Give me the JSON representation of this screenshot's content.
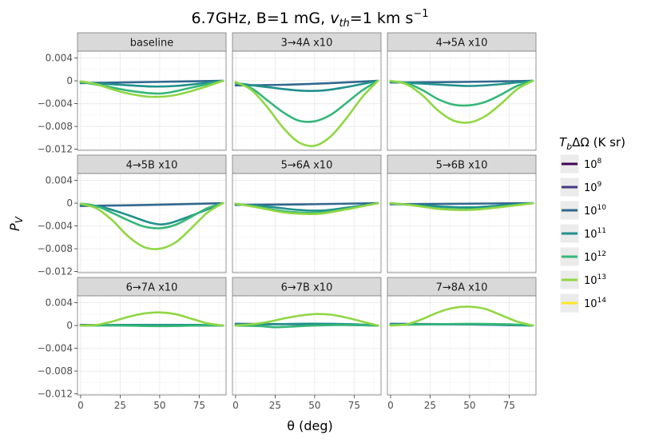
{
  "chart_data": {
    "type": "line",
    "facet": true,
    "title": "6.7GHz, B=1 mG, v_th=1 km s^-1",
    "title_parts": {
      "prefix": "6.7GHz, B=1 mG, ",
      "v": "v",
      "v_sub": "th",
      "mid": "=1 km s",
      "sup": "−1"
    },
    "xlabel": "θ (deg)",
    "ylabel": "P_V",
    "ylabel_parts": {
      "main": "P",
      "sub": "V"
    },
    "xlim": [
      -2,
      92
    ],
    "ylim": [
      -0.0122,
      0.0052
    ],
    "x_ticks": [
      0,
      25,
      50,
      75
    ],
    "x_tick_labels": [
      "0",
      "25",
      "50",
      "75"
    ],
    "y_ticks": [
      0.004,
      0,
      -0.004,
      -0.008,
      -0.012
    ],
    "y_tick_labels": [
      "0.004",
      "0",
      "−0.004",
      "−0.008",
      "−0.012"
    ],
    "legend": {
      "title": "T_bΔΩ (K sr)",
      "title_parts": {
        "main": "T",
        "sub": "b",
        "rest": "ΔΩ (K sr)"
      },
      "position": "right",
      "entries": [
        {
          "name": "10^8",
          "base": "10",
          "exp": "8",
          "color": "#440154"
        },
        {
          "name": "10^9",
          "base": "10",
          "exp": "9",
          "color": "#443983"
        },
        {
          "name": "10^10",
          "base": "10",
          "exp": "10",
          "color": "#31688e"
        },
        {
          "name": "10^11",
          "base": "10",
          "exp": "11",
          "color": "#21918c"
        },
        {
          "name": "10^12",
          "base": "10",
          "exp": "12",
          "color": "#35b779"
        },
        {
          "name": "10^13",
          "base": "10",
          "exp": "13",
          "color": "#90d743"
        },
        {
          "name": "10^14",
          "base": "10",
          "exp": "14",
          "color": "#fde725"
        }
      ]
    },
    "panels": [
      {
        "label": "baseline",
        "series": [
          {
            "name": "10^10",
            "color": "#31688e",
            "x": [
              0,
              45,
              90
            ],
            "y": [
              -0.0004,
              -0.0002,
              0
            ]
          },
          {
            "name": "10^11",
            "color": "#21918c",
            "x": [
              0,
              25,
              45,
              60,
              75,
              90
            ],
            "y": [
              -0.0003,
              -0.0007,
              -0.001,
              -0.0009,
              -0.0005,
              0
            ]
          },
          {
            "name": "10^12",
            "color": "#35b779",
            "x": [
              0,
              15,
              30,
              45,
              55,
              70,
              90
            ],
            "y": [
              -0.0002,
              -0.0009,
              -0.0017,
              -0.0022,
              -0.0021,
              -0.0012,
              0
            ]
          },
          {
            "name": "10^13",
            "color": "#90d743",
            "x": [
              0,
              10,
              25,
              40,
              50,
              60,
              75,
              90
            ],
            "y": [
              -0.0001,
              -0.0006,
              -0.0019,
              -0.0027,
              -0.0028,
              -0.0025,
              -0.0014,
              0
            ]
          }
        ]
      },
      {
        "label": "3→4A x10",
        "series": [
          {
            "name": "10^10",
            "color": "#31688e",
            "x": [
              0,
              30,
              60,
              90
            ],
            "y": [
              -0.0008,
              -0.0007,
              -0.0004,
              0
            ]
          },
          {
            "name": "10^11",
            "color": "#21918c",
            "x": [
              0,
              20,
              40,
              55,
              70,
              90
            ],
            "y": [
              -0.0004,
              -0.0011,
              -0.0017,
              -0.0017,
              -0.0011,
              0
            ]
          },
          {
            "name": "10^12",
            "color": "#35b779",
            "x": [
              0,
              10,
              20,
              30,
              40,
              50,
              60,
              70,
              80,
              90
            ],
            "y": [
              -0.0004,
              -0.0013,
              -0.0034,
              -0.0055,
              -0.007,
              -0.0071,
              -0.006,
              -0.0039,
              -0.0017,
              0
            ]
          },
          {
            "name": "10^13",
            "color": "#90d743",
            "x": [
              0,
              10,
              20,
              30,
              40,
              50,
              60,
              70,
              80,
              90
            ],
            "y": [
              -0.0002,
              -0.0016,
              -0.0046,
              -0.0082,
              -0.0108,
              -0.0114,
              -0.0098,
              -0.0066,
              -0.0029,
              0
            ]
          }
        ]
      },
      {
        "label": "4→5A x10",
        "series": [
          {
            "name": "10^10",
            "color": "#31688e",
            "x": [
              0,
              45,
              90
            ],
            "y": [
              -0.0003,
              -0.0002,
              0
            ]
          },
          {
            "name": "10^11",
            "color": "#21918c",
            "x": [
              0,
              20,
              40,
              50,
              65,
              90
            ],
            "y": [
              -0.0002,
              -0.0005,
              -0.0008,
              -0.0009,
              -0.0007,
              0
            ]
          },
          {
            "name": "10^12",
            "color": "#35b779",
            "x": [
              0,
              10,
              20,
              30,
              40,
              50,
              60,
              70,
              80,
              90
            ],
            "y": [
              -0.0001,
              -0.0004,
              -0.0016,
              -0.0032,
              -0.0042,
              -0.0043,
              -0.0037,
              -0.0024,
              -0.0009,
              0
            ]
          },
          {
            "name": "10^13",
            "color": "#90d743",
            "x": [
              0,
              10,
              20,
              30,
              40,
              50,
              60,
              70,
              80,
              90
            ],
            "y": [
              0,
              -0.0006,
              -0.0025,
              -0.0052,
              -0.007,
              -0.0073,
              -0.0062,
              -0.004,
              -0.0015,
              0
            ]
          }
        ]
      },
      {
        "label": "4→5B x10",
        "series": [
          {
            "name": "10^10",
            "color": "#31688e",
            "x": [
              0,
              45,
              90
            ],
            "y": [
              -0.0005,
              -0.0003,
              0
            ]
          },
          {
            "name": "10^11",
            "color": "#21918c",
            "x": [
              0,
              15,
              30,
              45,
              55,
              70,
              90
            ],
            "y": [
              -0.0003,
              -0.0008,
              -0.0021,
              -0.0035,
              -0.0036,
              -0.0022,
              0
            ]
          },
          {
            "name": "10^12",
            "color": "#35b779",
            "x": [
              0,
              10,
              20,
              30,
              40,
              50,
              60,
              70,
              80,
              90
            ],
            "y": [
              -0.0001,
              -0.0005,
              -0.0017,
              -0.003,
              -0.0041,
              -0.0044,
              -0.0038,
              -0.0024,
              -0.0009,
              0
            ]
          },
          {
            "name": "10^13",
            "color": "#90d743",
            "x": [
              0,
              10,
              20,
              30,
              40,
              50,
              60,
              70,
              80,
              90
            ],
            "y": [
              -0.0001,
              -0.0009,
              -0.003,
              -0.0058,
              -0.0077,
              -0.008,
              -0.0069,
              -0.0044,
              -0.0017,
              0
            ]
          }
        ]
      },
      {
        "label": "5→6A x10",
        "series": [
          {
            "name": "10^10",
            "color": "#31688e",
            "x": [
              0,
              45,
              90
            ],
            "y": [
              -0.0003,
              -0.0002,
              0
            ]
          },
          {
            "name": "10^11",
            "color": "#21918c",
            "x": [
              0,
              20,
              40,
              55,
              70,
              90
            ],
            "y": [
              -0.0002,
              -0.0006,
              -0.0012,
              -0.0013,
              -0.0008,
              0
            ]
          },
          {
            "name": "10^12",
            "color": "#35b779",
            "x": [
              0,
              15,
              30,
              45,
              55,
              70,
              90
            ],
            "y": [
              -0.0001,
              -0.0007,
              -0.0014,
              -0.0017,
              -0.0016,
              -0.001,
              0
            ]
          },
          {
            "name": "10^13",
            "color": "#90d743",
            "x": [
              0,
              15,
              30,
              45,
              55,
              70,
              90
            ],
            "y": [
              -0.0001,
              -0.0008,
              -0.0016,
              -0.0019,
              -0.0018,
              -0.0011,
              0
            ]
          }
        ]
      },
      {
        "label": "5→6B x10",
        "series": [
          {
            "name": "10^10",
            "color": "#31688e",
            "x": [
              0,
              45,
              90
            ],
            "y": [
              -0.0002,
              -0.0001,
              0
            ]
          },
          {
            "name": "10^11",
            "color": "#21918c",
            "x": [
              0,
              20,
              40,
              55,
              70,
              90
            ],
            "y": [
              -0.0001,
              -0.0004,
              -0.0007,
              -0.0007,
              -0.0004,
              0
            ]
          },
          {
            "name": "10^12",
            "color": "#35b779",
            "x": [
              0,
              15,
              30,
              45,
              55,
              70,
              90
            ],
            "y": [
              0,
              -0.0004,
              -0.0009,
              -0.0011,
              -0.001,
              -0.0006,
              0
            ]
          },
          {
            "name": "10^13",
            "color": "#90d743",
            "x": [
              0,
              15,
              30,
              45,
              55,
              70,
              90
            ],
            "y": [
              0,
              -0.0004,
              -0.001,
              -0.0012,
              -0.0011,
              -0.0007,
              0
            ]
          }
        ]
      },
      {
        "label": "6→7A x10",
        "series": [
          {
            "name": "10^10",
            "color": "#31688e",
            "x": [
              0,
              45,
              90
            ],
            "y": [
              0.0001,
              0,
              0
            ]
          },
          {
            "name": "10^11",
            "color": "#21918c",
            "x": [
              0,
              25,
              50,
              75,
              90
            ],
            "y": [
              0,
              0.0001,
              0.0001,
              0.0001,
              0
            ]
          },
          {
            "name": "10^12",
            "color": "#35b779",
            "x": [
              0,
              25,
              50,
              75,
              90
            ],
            "y": [
              0,
              0,
              -0.0001,
              0,
              0
            ]
          },
          {
            "name": "10^13",
            "color": "#90d743",
            "x": [
              0,
              10,
              20,
              30,
              40,
              50,
              60,
              70,
              80,
              90
            ],
            "y": [
              0,
              0.0001,
              0.0007,
              0.0015,
              0.0021,
              0.0023,
              0.002,
              0.0012,
              0.0004,
              0
            ]
          }
        ]
      },
      {
        "label": "6→7B x10",
        "series": [
          {
            "name": "10^10",
            "color": "#31688e",
            "x": [
              0,
              45,
              90
            ],
            "y": [
              0.0003,
              0.0002,
              0
            ]
          },
          {
            "name": "10^11",
            "color": "#21918c",
            "x": [
              0,
              20,
              40,
              60,
              75,
              90
            ],
            "y": [
              0.0002,
              0.0002,
              0.0003,
              0.0003,
              0.0002,
              0
            ]
          },
          {
            "name": "10^12",
            "color": "#35b779",
            "x": [
              0,
              15,
              25,
              35,
              50,
              70,
              90
            ],
            "y": [
              0,
              -0.0001,
              -0.0003,
              -0.0002,
              0,
              0.0001,
              0
            ]
          },
          {
            "name": "10^13",
            "color": "#90d743",
            "x": [
              0,
              10,
              20,
              30,
              40,
              50,
              60,
              70,
              80,
              90
            ],
            "y": [
              0,
              0.0002,
              0.0006,
              0.0012,
              0.0017,
              0.002,
              0.0019,
              0.0014,
              0.0007,
              0
            ]
          }
        ]
      },
      {
        "label": "7→8A x10",
        "series": [
          {
            "name": "10^10",
            "color": "#31688e",
            "x": [
              0,
              45,
              90
            ],
            "y": [
              0.0003,
              0.0002,
              0
            ]
          },
          {
            "name": "10^11",
            "color": "#21918c",
            "x": [
              0,
              25,
              50,
              75,
              90
            ],
            "y": [
              0.0002,
              0.0002,
              0.0002,
              0.0001,
              0
            ]
          },
          {
            "name": "10^12",
            "color": "#35b779",
            "x": [
              0,
              25,
              50,
              75,
              90
            ],
            "y": [
              0.0001,
              0.0002,
              0.0003,
              0.0002,
              0
            ]
          },
          {
            "name": "10^13",
            "color": "#90d743",
            "x": [
              0,
              10,
              20,
              30,
              40,
              50,
              60,
              70,
              80,
              90
            ],
            "y": [
              0,
              0.0002,
              0.0011,
              0.0023,
              0.0031,
              0.0033,
              0.0029,
              0.0018,
              0.0007,
              0
            ]
          }
        ]
      }
    ]
  }
}
